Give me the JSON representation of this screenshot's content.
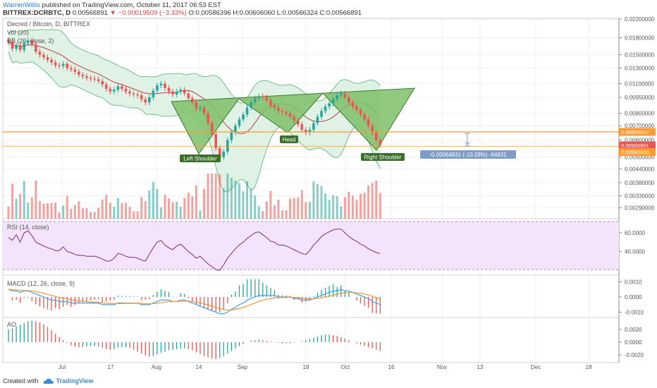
{
  "header": {
    "author": "WarrenWillis",
    "published": "published on TradingView.com, October 11, 2017 06:53 EST",
    "symbol": "BITTREX:DCRBTC, D",
    "price": "0.00566891",
    "change": "−0.00019509 (−3.33%)",
    "ohlc": "O:0.00586396 H:0.00606060 L:0.00566324 C:0.00566891"
  },
  "legend": {
    "title": "Decred / Bitcoin, D, BITTREX",
    "vol": "Vol (20)",
    "bb": "BB (20, close, 2)",
    "rsi": "RSI (14, close)",
    "macd": "MACD (12, 26, close, 9)",
    "ao": "AO"
  },
  "footer": {
    "created": "Created with",
    "brand": "TradingView"
  },
  "colors": {
    "up": "#26a69a",
    "down": "#ef5350",
    "bb_fill": "#d9f0e0",
    "bb_line": "#6fbf8f",
    "pattern": "#7fbf6a",
    "level": "#ff9a2e",
    "rsi_fill": "#f3e4fb",
    "rsi_line": "#7b2a80",
    "macd_line": "#2e9be6",
    "signal_line": "#ff8b2a",
    "badge": "#4a5a6a",
    "measure": "#7d9cc8"
  },
  "chart_data": {
    "type": "candlestick",
    "title": "Decred / Bitcoin, D, BITTREX",
    "x_ticks": [
      "Jul",
      "17",
      "Aug",
      "14",
      "Sep",
      "18",
      "Oct",
      "16",
      "Nov",
      "13",
      "Dec",
      "18"
    ],
    "price_ticks": [
      "0.02200000",
      "0.01800000",
      "0.01500000",
      "0.01300000",
      "0.01100000",
      "0.00950000",
      "0.00800000",
      "0.00700000",
      "0.00600000",
      "0.00500000",
      "0.00440000",
      "0.00380000",
      "0.00330000",
      "0.00290000"
    ],
    "price_labels": [
      {
        "value": "0.00655007",
        "color": "#ff9a2e"
      },
      {
        "value": "0.00566891",
        "color": "#ef5350"
      },
      {
        "value": "0.00560630",
        "color": "#ff9a2e"
      }
    ],
    "levels": [
      0.00655007,
      0.0056063
    ],
    "rsi_ticks": [
      "60.0000",
      "40.0000"
    ],
    "macd_ticks": [
      "0.0010",
      "0.0000",
      "-0.0010"
    ],
    "ao_ticks": [
      "0.0020",
      "0.0000",
      "-0.0020"
    ],
    "pattern": {
      "name": "Head and Shoulders",
      "labels": [
        "Left Shoulder",
        "Head",
        "Right Shoulder"
      ]
    },
    "measure_label": "-0.00064831 (-10.28%) -64831",
    "close": [
      0.0172,
      0.016,
      0.0166,
      0.0158,
      0.017,
      0.0175,
      0.0168,
      0.0155,
      0.015,
      0.0146,
      0.0142,
      0.0138,
      0.0134,
      0.0133,
      0.0136,
      0.013,
      0.0128,
      0.0125,
      0.0121,
      0.0119,
      0.0117,
      0.0116,
      0.0115,
      0.0113,
      0.0109,
      0.0104,
      0.0101,
      0.0103,
      0.0107,
      0.0104,
      0.0101,
      0.0099,
      0.0098,
      0.0097,
      0.0093,
      0.009,
      0.0095,
      0.0102,
      0.0108,
      0.011,
      0.0105,
      0.0101,
      0.0098,
      0.0101,
      0.0103,
      0.0099,
      0.0094,
      0.009,
      0.0084,
      0.0085,
      0.008,
      0.0072,
      0.0064,
      0.0055,
      0.005,
      0.0053,
      0.006,
      0.0065,
      0.007,
      0.0075,
      0.0079,
      0.0085,
      0.009,
      0.0094,
      0.0096,
      0.0095,
      0.0092,
      0.0087,
      0.0085,
      0.0082,
      0.0081,
      0.008,
      0.0077,
      0.0074,
      0.0071,
      0.0067,
      0.0065,
      0.0067,
      0.0072,
      0.0077,
      0.0082,
      0.0086,
      0.0089,
      0.0093,
      0.0097,
      0.0099,
      0.0095,
      0.009,
      0.0086,
      0.0083,
      0.0079,
      0.0075,
      0.007,
      0.0065,
      0.006,
      0.0057
    ],
    "rsi": [
      55,
      52,
      58,
      50,
      60,
      62,
      57,
      50,
      48,
      46,
      44,
      43,
      41,
      41,
      45,
      40,
      39,
      37,
      36,
      36,
      35,
      35,
      35,
      34,
      32,
      30,
      30,
      33,
      38,
      37,
      35,
      34,
      34,
      33,
      31,
      30,
      37,
      44,
      50,
      52,
      47,
      44,
      42,
      46,
      48,
      44,
      40,
      37,
      33,
      35,
      31,
      27,
      24,
      21,
      20,
      26,
      33,
      38,
      43,
      47,
      50,
      54,
      57,
      60,
      61,
      58,
      55,
      51,
      50,
      47,
      47,
      46,
      44,
      42,
      40,
      38,
      37,
      41,
      47,
      51,
      56,
      59,
      61,
      63,
      64,
      64,
      60,
      56,
      53,
      51,
      48,
      46,
      43,
      41,
      39,
      38
    ],
    "macd": [
      0.0005,
      0.0004,
      0.0004,
      0.0003,
      0.0004,
      0.0004,
      0.0003,
      0.0002,
      0.0001,
      0.0,
      -0.0001,
      -0.0002,
      -0.0002,
      -0.0003,
      -0.0003,
      -0.0003,
      -0.0004,
      -0.0004,
      -0.0004,
      -0.0004,
      -0.0004,
      -0.0004,
      -0.0004,
      -0.0004,
      -0.0005,
      -0.0005,
      -0.0005,
      -0.0005,
      -0.0004,
      -0.0004,
      -0.0004,
      -0.0004,
      -0.0004,
      -0.0004,
      -0.0005,
      -0.0005,
      -0.0005,
      -0.0004,
      -0.0003,
      -0.0002,
      -0.0002,
      -0.0002,
      -0.0003,
      -0.0003,
      -0.0002,
      -0.0002,
      -0.0003,
      -0.0004,
      -0.0005,
      -0.0006,
      -0.0007,
      -0.0008,
      -0.0009,
      -0.001,
      -0.0011,
      -0.0011,
      -0.001,
      -0.0008,
      -0.0007,
      -0.0005,
      -0.0004,
      -0.0002,
      -0.0001,
      0.0,
      0.0001,
      0.0001,
      0.0001,
      0.0001,
      0.0001,
      0.0,
      0.0,
      0.0,
      0.0,
      -0.0001,
      -0.0001,
      -0.0002,
      -0.0002,
      -0.0002,
      -0.0001,
      0.0,
      0.0001,
      0.0002,
      0.0003,
      0.0004,
      0.0004,
      0.0005,
      0.0004,
      0.0004,
      0.0003,
      0.0002,
      0.0001,
      0.0,
      -0.0001,
      -0.0003,
      -0.0004,
      -0.0005
    ],
    "ao": [
      0.002,
      0.0022,
      0.0025,
      0.0027,
      0.003,
      0.0033,
      0.0034,
      0.0033,
      0.0031,
      0.0028,
      0.0024,
      0.0019,
      0.0013,
      0.0008,
      0.0003,
      -0.0001,
      -0.0005,
      -0.0007,
      -0.0008,
      -0.0008,
      -0.0007,
      -0.0006,
      -0.0006,
      -0.0007,
      -0.0009,
      -0.0011,
      -0.0012,
      -0.0011,
      -0.0009,
      -0.0008,
      -0.0008,
      -0.0009,
      -0.0012,
      -0.0015,
      -0.0018,
      -0.0021,
      -0.0023,
      -0.0022,
      -0.0019,
      -0.0017,
      -0.0015,
      -0.0013,
      -0.0012,
      -0.0011,
      -0.001,
      -0.001,
      -0.0011,
      -0.0013,
      -0.0016,
      -0.0019,
      -0.0022,
      -0.0024,
      -0.0026,
      -0.0027,
      -0.0025,
      -0.0022,
      -0.0018,
      -0.0014,
      -0.001,
      -0.0006,
      -0.0003,
      0.0,
      0.0002,
      0.0003,
      0.0004,
      0.0003,
      0.0002,
      0.0001,
      0.0,
      -0.0001,
      -0.0002,
      -0.0002,
      -0.0002,
      -0.0001,
      0.0,
      0.0001,
      0.0003,
      0.0005,
      0.0007,
      0.0009,
      0.0011,
      0.0012,
      0.0012,
      0.0011,
      0.001,
      0.0008,
      0.0006,
      0.0003,
      0.0,
      -0.0002,
      -0.0004,
      -0.0006,
      -0.0008,
      -0.001,
      -0.0012,
      -0.0014
    ]
  }
}
